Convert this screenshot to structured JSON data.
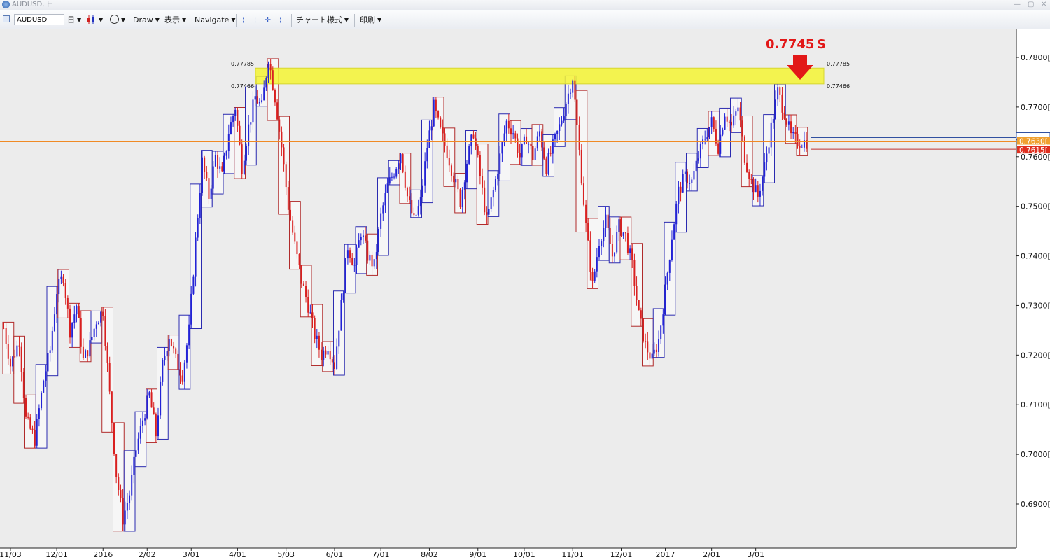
{
  "window": {
    "title": "AUDUSD, 日"
  },
  "toolbar": {
    "symbol": "AUDUSD",
    "timeframe": "日",
    "draw": "Draw",
    "display": "表示",
    "navigate": "Navigate",
    "chart_style": "チャート様式",
    "print": "印刷"
  },
  "icons": [
    "globe-icon",
    "chart-window-icon",
    "candle-color-icon",
    "circle-tool-icon",
    "crosshair-icon",
    "dropdown-arrow-icon"
  ],
  "colors": {
    "background": "#ececec",
    "up": "#2323d6",
    "down": "#d92020",
    "box_up": "#2b2bb0",
    "box_down": "#b02b2b",
    "zone": "#f5f534",
    "hline": "#f08a24",
    "annotation": "#e21818"
  },
  "chart_data": {
    "type": "candlestick",
    "instrument": "AUDUSD",
    "title": "",
    "ylim": [
      0.682,
      0.788
    ],
    "y_ticks": [
      "0.7800[0",
      "0.7700[0",
      "0.7600[0",
      "0.7500[0",
      "0.7400[0",
      "0.7300[0",
      "0.7200[0",
      "0.7100[0",
      "0.7000[0",
      "0.6900[0"
    ],
    "y_tick_values": [
      0.78,
      0.77,
      0.76,
      0.75,
      0.74,
      0.73,
      0.72,
      0.71,
      0.7,
      0.69
    ],
    "x_ticks": [
      "11/03",
      "12/01",
      "2016",
      "2/02",
      "3/01",
      "4/01",
      "5/03",
      "6/01",
      "7/01",
      "8/02",
      "9/01",
      "10/01",
      "11/01",
      "12/01",
      "2017",
      "2/01",
      "3/01"
    ],
    "x_tick_index": [
      3,
      24,
      45,
      65,
      85,
      106,
      128,
      150,
      171,
      193,
      215,
      236,
      258,
      280,
      300,
      321,
      341
    ],
    "n_bars": 365,
    "resistance_zone": {
      "upper": 0.77785,
      "lower": 0.77466,
      "upper_label": "0.77785",
      "lower_label": "0.77466"
    },
    "annotation": {
      "text": "0.7745 S",
      "price": 0.7745
    },
    "current_price_line": 0.763,
    "price_tags": [
      {
        "text": "0.7630[",
        "value": 0.763,
        "color": "#f0a030"
      },
      {
        "text": "0.7615[",
        "value": 0.7615,
        "color": "#e03020"
      }
    ],
    "close_path": [
      [
        0,
        0.7255
      ],
      [
        3,
        0.718
      ],
      [
        7,
        0.723
      ],
      [
        10,
        0.707
      ],
      [
        14,
        0.703
      ],
      [
        18,
        0.715
      ],
      [
        21,
        0.721
      ],
      [
        24,
        0.733
      ],
      [
        27,
        0.736
      ],
      [
        30,
        0.725
      ],
      [
        33,
        0.73
      ],
      [
        36,
        0.719
      ],
      [
        39,
        0.722
      ],
      [
        42,
        0.727
      ],
      [
        45,
        0.729
      ],
      [
        48,
        0.712
      ],
      [
        51,
        0.696
      ],
      [
        54,
        0.687
      ],
      [
        57,
        0.692
      ],
      [
        60,
        0.701
      ],
      [
        63,
        0.707
      ],
      [
        66,
        0.712
      ],
      [
        69,
        0.704
      ],
      [
        72,
        0.718
      ],
      [
        75,
        0.724
      ],
      [
        78,
        0.719
      ],
      [
        81,
        0.716
      ],
      [
        84,
        0.725
      ],
      [
        87,
        0.743
      ],
      [
        90,
        0.759
      ],
      [
        93,
        0.752
      ],
      [
        96,
        0.76
      ],
      [
        99,
        0.756
      ],
      [
        102,
        0.765
      ],
      [
        105,
        0.77
      ],
      [
        108,
        0.758
      ],
      [
        111,
        0.766
      ],
      [
        114,
        0.772
      ],
      [
        117,
        0.77
      ],
      [
        120,
        0.78
      ],
      [
        123,
        0.772
      ],
      [
        126,
        0.762
      ],
      [
        129,
        0.75
      ],
      [
        132,
        0.742
      ],
      [
        135,
        0.735
      ],
      [
        138,
        0.73
      ],
      [
        141,
        0.724
      ],
      [
        144,
        0.72
      ],
      [
        147,
        0.722
      ],
      [
        150,
        0.718
      ],
      [
        153,
        0.73
      ],
      [
        156,
        0.742
      ],
      [
        159,
        0.738
      ],
      [
        162,
        0.745
      ],
      [
        165,
        0.74
      ],
      [
        168,
        0.738
      ],
      [
        171,
        0.748
      ],
      [
        174,
        0.754
      ],
      [
        177,
        0.757
      ],
      [
        180,
        0.761
      ],
      [
        183,
        0.752
      ],
      [
        186,
        0.747
      ],
      [
        189,
        0.751
      ],
      [
        192,
        0.762
      ],
      [
        195,
        0.77
      ],
      [
        198,
        0.765
      ],
      [
        201,
        0.761
      ],
      [
        204,
        0.756
      ],
      [
        207,
        0.751
      ],
      [
        210,
        0.759
      ],
      [
        213,
        0.765
      ],
      [
        216,
        0.756
      ],
      [
        219,
        0.747
      ],
      [
        222,
        0.753
      ],
      [
        225,
        0.76
      ],
      [
        228,
        0.767
      ],
      [
        231,
        0.765
      ],
      [
        234,
        0.76
      ],
      [
        237,
        0.764
      ],
      [
        240,
        0.76
      ],
      [
        243,
        0.765
      ],
      [
        246,
        0.758
      ],
      [
        249,
        0.762
      ],
      [
        252,
        0.766
      ],
      [
        255,
        0.771
      ],
      [
        258,
        0.776
      ],
      [
        261,
        0.761
      ],
      [
        264,
        0.746
      ],
      [
        267,
        0.734
      ],
      [
        270,
        0.743
      ],
      [
        273,
        0.747
      ],
      [
        276,
        0.74
      ],
      [
        279,
        0.746
      ],
      [
        282,
        0.744
      ],
      [
        285,
        0.738
      ],
      [
        288,
        0.728
      ],
      [
        291,
        0.722
      ],
      [
        294,
        0.719
      ],
      [
        297,
        0.723
      ],
      [
        300,
        0.733
      ],
      [
        303,
        0.744
      ],
      [
        306,
        0.753
      ],
      [
        309,
        0.756
      ],
      [
        312,
        0.755
      ],
      [
        315,
        0.76
      ],
      [
        318,
        0.764
      ],
      [
        321,
        0.767
      ],
      [
        324,
        0.762
      ],
      [
        327,
        0.769
      ],
      [
        330,
        0.766
      ],
      [
        333,
        0.77
      ],
      [
        336,
        0.76
      ],
      [
        339,
        0.755
      ],
      [
        342,
        0.752
      ],
      [
        345,
        0.758
      ],
      [
        348,
        0.766
      ],
      [
        351,
        0.773
      ],
      [
        354,
        0.769
      ],
      [
        357,
        0.764
      ],
      [
        360,
        0.763
      ]
    ]
  }
}
